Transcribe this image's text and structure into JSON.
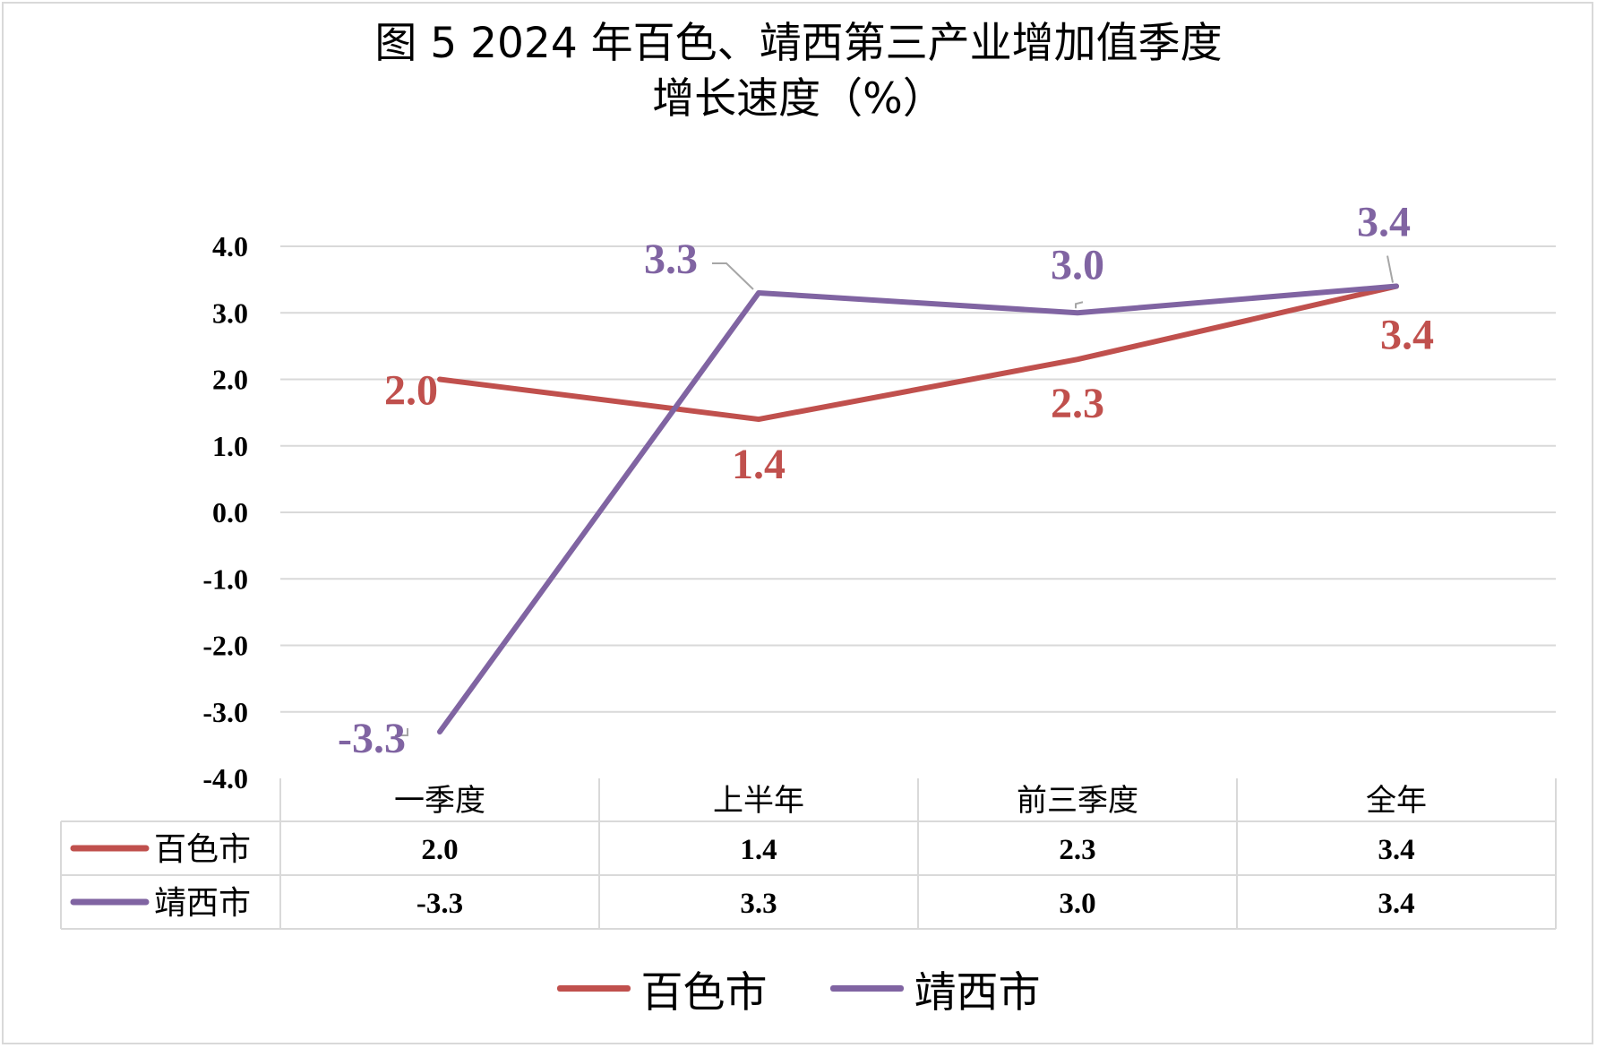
{
  "title_line1": "图 5  2024 年百色、靖西第三产业增加值季度",
  "title_line2": "增长速度（%）",
  "chart_data": {
    "type": "line",
    "categories": [
      "一季度",
      "上半年",
      "前三季度",
      "全年"
    ],
    "series": [
      {
        "name": "百色市",
        "color": "#c0504d",
        "values": [
          2.0,
          1.4,
          2.3,
          3.4
        ],
        "labels": [
          "2.0",
          "1.4",
          "2.3",
          "3.4"
        ]
      },
      {
        "name": "靖西市",
        "color": "#8064a2",
        "values": [
          -3.3,
          3.3,
          3.0,
          3.4
        ],
        "labels": [
          "-3.3",
          "3.3",
          "3.0",
          "3.4"
        ]
      }
    ],
    "ylim": [
      -4.0,
      4.0
    ],
    "yticks": [
      "-4.0",
      "-3.0",
      "-2.0",
      "-1.0",
      "0.0",
      "1.0",
      "2.0",
      "3.0",
      "4.0"
    ],
    "grid": true,
    "data_table": true,
    "legend_position": "bottom"
  }
}
